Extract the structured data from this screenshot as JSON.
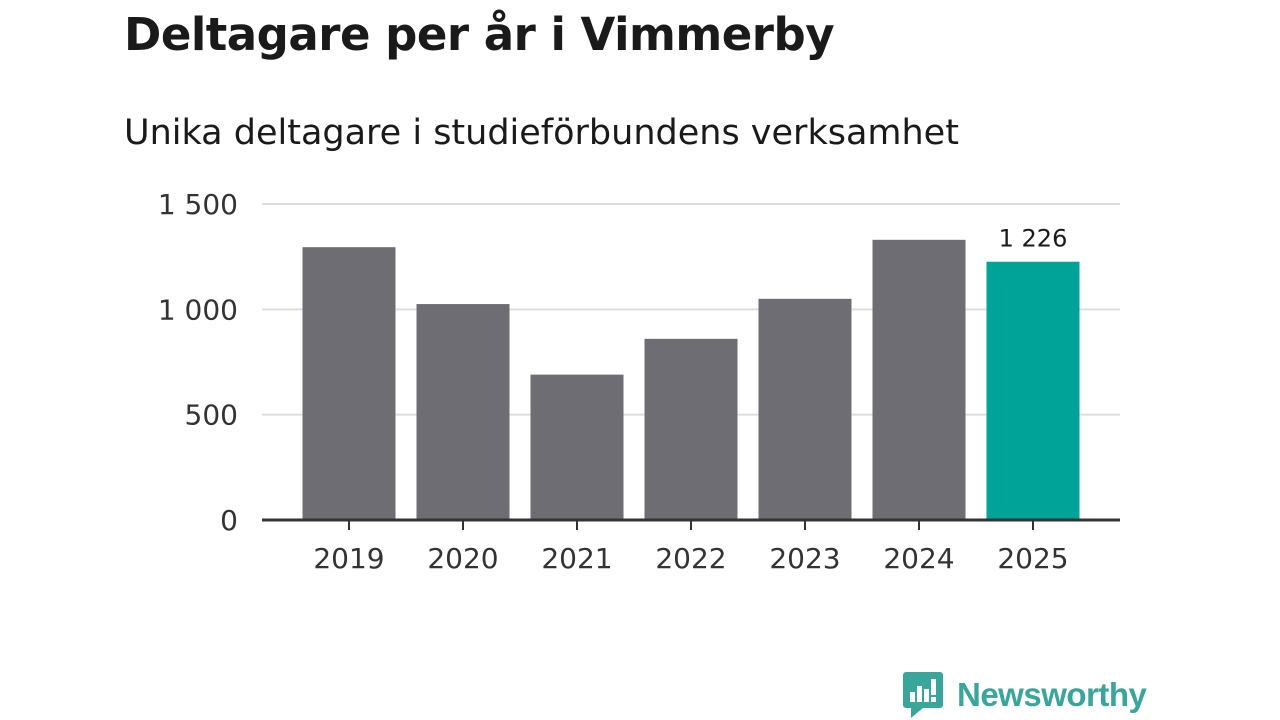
{
  "chart_data": {
    "type": "bar",
    "title": "Deltagare per år i Vimmerby",
    "subtitle": "Unika deltagare i studieförbundens verksamhet",
    "categories": [
      "2019",
      "2020",
      "2021",
      "2022",
      "2023",
      "2024",
      "2025"
    ],
    "values": [
      1295,
      1025,
      690,
      860,
      1050,
      1330,
      1226
    ],
    "ylim": [
      0,
      1500
    ],
    "yticks": [
      0,
      500,
      1000,
      1500
    ],
    "ytick_labels": [
      "0",
      "500",
      "1 000",
      "1 500"
    ],
    "highlight_index": 6,
    "annotation": "1 226",
    "xlabel": "",
    "ylabel": "",
    "grid": true
  },
  "colors": {
    "bar": "#6e6d73",
    "highlight": "#00a398",
    "grid": "#dddddd",
    "axis": "#333333",
    "brand": "#3aa59b"
  },
  "brand": {
    "name": "Newsworthy",
    "icon": "newsworthy-logo-icon"
  }
}
